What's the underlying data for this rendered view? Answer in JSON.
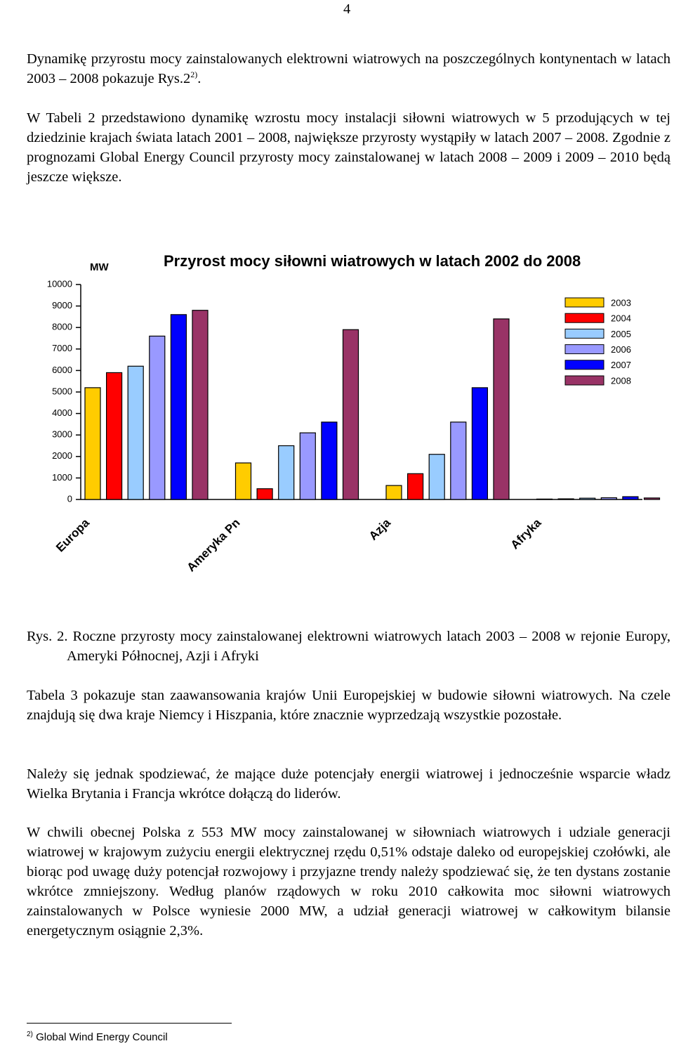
{
  "page_number": "4",
  "intro": {
    "text": "Dynamikę przyrostu mocy zainstalowanych elektrowni wiatrowych na poszczególnych kontynentach w latach 2003 – 2008 pokazuje Rys.2",
    "sup": "2)",
    "tail": "."
  },
  "paragraphs": [
    "W Tabeli 2 przedstawiono dynamikę wzrostu mocy instalacji siłowni wiatrowych w 5 przodujących w tej dziedzinie krajach świata latach 2001 – 2008, największe przyrosty wystąpiły w latach 2007 – 2008. Zgodnie z prognozami Global Energy Council przyrosty mocy zainstalowanej w latach 2008 – 2009 i 2009 – 2010 będą jeszcze większe."
  ],
  "chart_data": {
    "type": "bar",
    "title": "Przyrost mocy siłowni wiatrowych w latach 2002 do 2008",
    "y_label": "MW",
    "categories": [
      "Europa",
      "Ameryka Pn",
      "Azja",
      "Afryka"
    ],
    "series": [
      {
        "name": "2003",
        "color": "#ffcc00",
        "values": [
          5200,
          1700,
          650,
          20
        ]
      },
      {
        "name": "2004",
        "color": "#ff0000",
        "values": [
          5900,
          500,
          1200,
          30
        ]
      },
      {
        "name": "2005",
        "color": "#99ccff",
        "values": [
          6200,
          2500,
          2100,
          60
        ]
      },
      {
        "name": "2006",
        "color": "#9999ff",
        "values": [
          7600,
          3100,
          3600,
          80
        ]
      },
      {
        "name": "2007",
        "color": "#0000ff",
        "values": [
          8600,
          3600,
          5200,
          130
        ]
      },
      {
        "name": "2008",
        "color": "#993366",
        "values": [
          8800,
          7900,
          8400,
          70
        ]
      }
    ],
    "ylim": [
      0,
      10000
    ],
    "yticks": [
      0,
      1000,
      2000,
      3000,
      4000,
      5000,
      6000,
      7000,
      8000,
      9000,
      10000
    ],
    "grid": false,
    "legend": "right"
  },
  "caption": {
    "label": "Rys. 2.",
    "text": "Roczne przyrosty mocy zainstalowanej elektrowni wiatrowych latach 2003 – 2008 w rejonie Europy, Ameryki Północnej, Azji i Afryki"
  },
  "body": [
    "Tabela 3 pokazuje stan zaawansowania krajów Unii Europejskiej w budowie siłowni wiatrowych. Na czele znajdują się dwa kraje Niemcy i Hiszpania, które znacznie wyprzedzają wszystkie pozostałe.",
    "Należy się jednak spodziewać, że mające duże potencjały energii wiatrowej i jednocześnie wsparcie władz Wielka Brytania i Francja wkrótce dołączą do liderów.",
    "W chwili obecnej Polska z 553 MW mocy zainstalowanej w siłowniach wiatrowych i udziale generacji wiatrowej w krajowym zużyciu energii elektrycznej rzędu 0,51% odstaje daleko od europejskiej czołówki, ale biorąc pod uwagę duży potencjał rozwojowy i przyjazne trendy należy spodziewać się, że ten dystans zostanie wkrótce zmniejszony. Według planów rządowych w roku 2010 całkowita moc siłowni wiatrowych zainstalowanych w Polsce wyniesie 2000 MW, a udział generacji wiatrowej w całkowitym bilansie energetycznym osiągnie 2,3%."
  ],
  "footnote": {
    "mark": "2)",
    "text": "Global Wind Energy Council"
  }
}
